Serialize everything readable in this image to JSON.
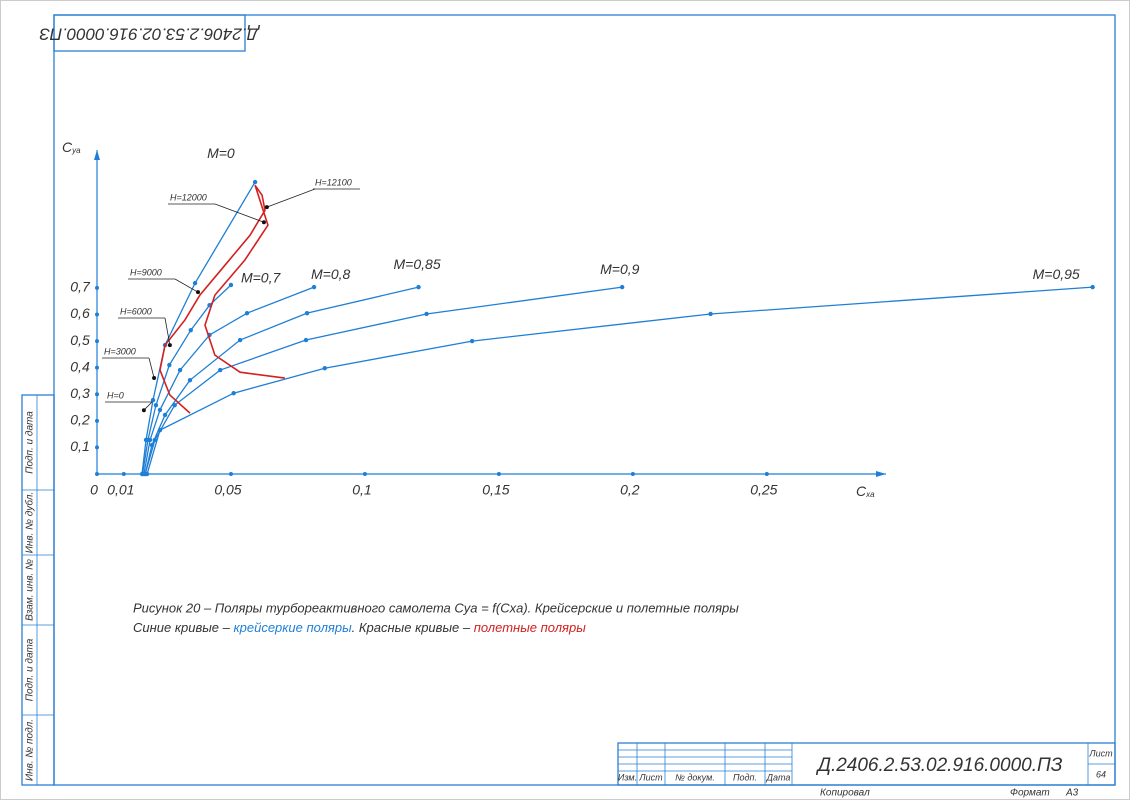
{
  "chart_data": {
    "type": "line",
    "xlabel": {
      "main": "C",
      "sub": "xa"
    },
    "ylabel": {
      "main": "C",
      "sub": "ya"
    },
    "xlim": [
      0,
      0.29
    ],
    "ylim": [
      0,
      1.2
    ],
    "xticks": [
      0,
      {
        "value": 0.01,
        "label": "0,01"
      },
      {
        "value": 0.05,
        "label": "0,05"
      },
      {
        "value": 0.1,
        "label": "0,1"
      },
      {
        "value": 0.15,
        "label": "0,15"
      },
      {
        "value": 0.2,
        "label": "0,2"
      },
      {
        "value": 0.25,
        "label": "0,25"
      }
    ],
    "yticks": [
      {
        "value": 0.1,
        "label": "0,1"
      },
      {
        "value": 0.2,
        "label": "0,2"
      },
      {
        "value": 0.3,
        "label": "0,3"
      },
      {
        "value": 0.4,
        "label": "0,4"
      },
      {
        "value": 0.5,
        "label": "0,5"
      },
      {
        "value": 0.6,
        "label": "0,6"
      },
      {
        "value": 0.7,
        "label": "0,7"
      }
    ],
    "series": [
      {
        "name": "M=0",
        "color": "#1f7fd6",
        "x": [
          0.0168,
          0.0183,
          0.0209,
          0.0254,
          0.0366,
          0.059
        ],
        "values": [
          0,
          0.128,
          0.278,
          0.485,
          0.718,
          1.098
        ]
      },
      {
        "name": "M=0,7",
        "color": "#1f7fd6",
        "x": [
          0.017,
          0.019,
          0.022,
          0.027,
          0.035,
          0.042,
          0.05
        ],
        "values": [
          0,
          0.128,
          0.259,
          0.41,
          0.541,
          0.635,
          0.711
        ]
      },
      {
        "name": "M=0,8",
        "color": "#1f7fd6",
        "x": [
          0.0175,
          0.0198,
          0.0235,
          0.031,
          0.042,
          0.056,
          0.081
        ],
        "values": [
          0,
          0.128,
          0.241,
          0.391,
          0.523,
          0.605,
          0.703
        ]
      },
      {
        "name": "M=0,85",
        "color": "#1f7fd6",
        "x": [
          0.018,
          0.0205,
          0.0254,
          0.0347,
          0.0534,
          0.0784,
          0.12
        ],
        "values": [
          0,
          0.109,
          0.222,
          0.353,
          0.504,
          0.605,
          0.703
        ]
      },
      {
        "name": "M=0,9",
        "color": "#1f7fd6",
        "x": [
          0.018,
          0.0216,
          0.029,
          0.046,
          0.078,
          0.123,
          0.196
        ],
        "values": [
          0,
          0.128,
          0.259,
          0.391,
          0.504,
          0.602,
          0.703
        ]
      },
      {
        "name": "M=0,95",
        "color": "#1f7fd6",
        "x": [
          0.0187,
          0.0235,
          0.051,
          0.085,
          0.14,
          0.229,
          0.3716
        ],
        "values": [
          0,
          0.165,
          0.304,
          0.398,
          0.5,
          0.602,
          0.703
        ]
      },
      {
        "color": "#d42020",
        "x": [
          0.0347,
          0.0272,
          0.0235,
          0.0254,
          0.0328,
          0.0384,
          0.0478,
          0.0571,
          0.0627,
          0.0616,
          0.059,
          0.0638,
          0.0552,
          0.044,
          0.0403,
          0.044,
          0.0534,
          0.0701
        ],
        "values": [
          0.229,
          0.297,
          0.391,
          0.485,
          0.579,
          0.673,
          0.786,
          0.898,
          0.992,
          1.049,
          1.086,
          0.936,
          0.805,
          0.673,
          0.56,
          0.447,
          0.383,
          0.361
        ]
      }
    ],
    "annotations": [
      {
        "text": "H=0",
        "x": 0.0175,
        "y": 0.24
      },
      {
        "text": "H=3000",
        "x": 0.0213,
        "y": 0.361
      },
      {
        "text": "H=6000",
        "x": 0.0272,
        "y": 0.485
      },
      {
        "text": "H=9000",
        "x": 0.0377,
        "y": 0.684
      },
      {
        "text": "H=12000",
        "x": 0.0623,
        "y": 0.947
      },
      {
        "text": "H=12100",
        "x": 0.0634,
        "y": 1.004
      }
    ]
  },
  "caption": {
    "line1": "Рисунок 20 – Поляры турбореактивного самолета Cya = f(Cxa). Крейсерские и полетные поляры",
    "line2": [
      "Синие кривые – ",
      "крейсеркие поляры",
      ". Красные кривые – ",
      "полетные поляры"
    ]
  },
  "sheet": {
    "code_mirrored": "Д.2406.2.53.02.916.0000.ПЗ",
    "side": [
      "Подп. и дата",
      "Инв. № дубл.",
      "Взам. инв. №",
      "Подп. и дата",
      "Инв. № подл."
    ],
    "stamp": {
      "columns": [
        "Изм.",
        "Лист",
        "№ докум.",
        "Подп.",
        "Дата"
      ],
      "code": "Д.2406.2.53.02.916.0000.ПЗ",
      "sheet_label": "Лист",
      "sheet_number": "64"
    },
    "footer": {
      "copied": "Копировал",
      "format_label": "Формат",
      "format": "А3"
    }
  }
}
